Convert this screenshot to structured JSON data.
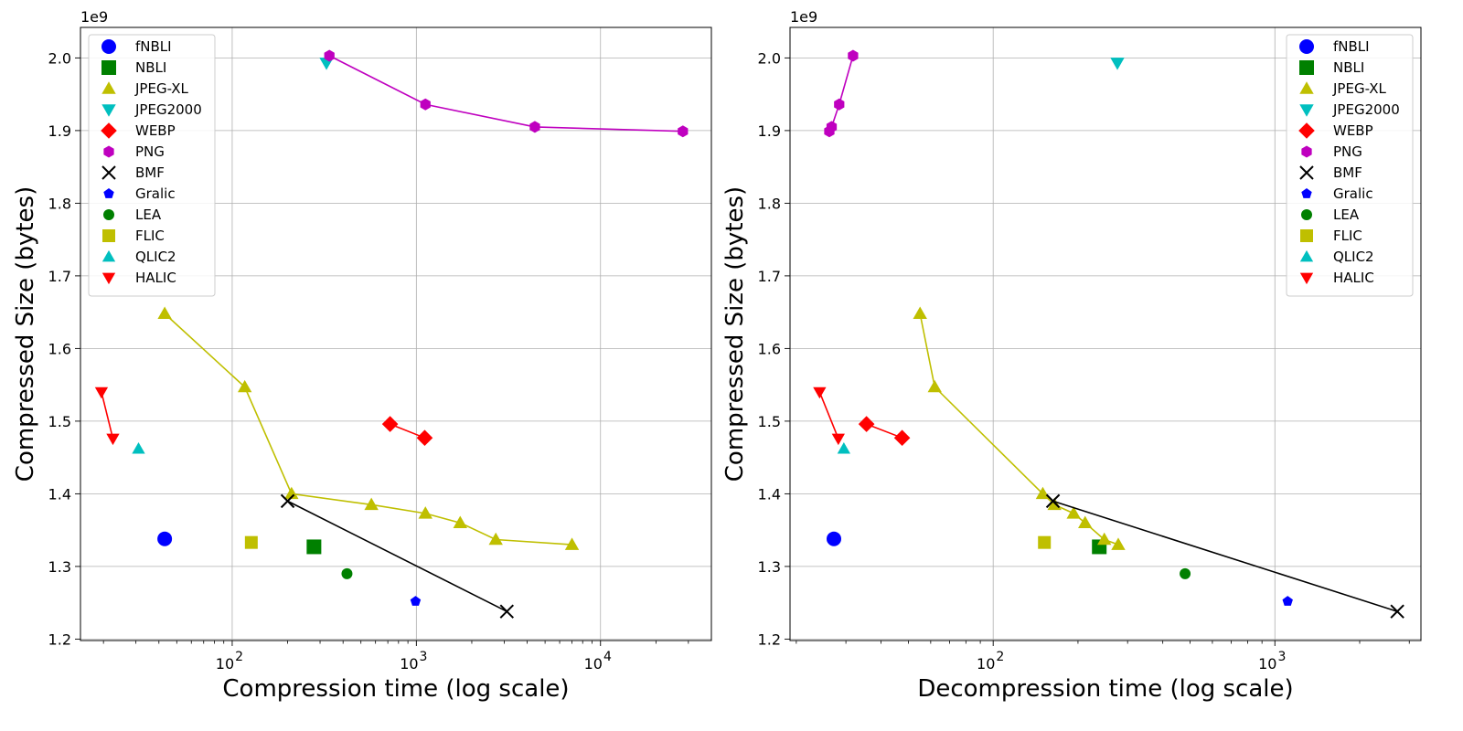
{
  "chart_data": [
    {
      "type": "scatter",
      "xscale": "log",
      "xlabel": "Compression time (log scale)",
      "ylabel": "Compressed Size (bytes)",
      "y_offset_text": "1e9",
      "xlim": [
        15,
        40000
      ],
      "ylim": [
        1.198,
        2.042
      ],
      "yticks": [
        1.2,
        1.3,
        1.4,
        1.5,
        1.6,
        1.7,
        1.8,
        1.9,
        2.0
      ],
      "ytick_labels": [
        "1.2",
        "1.3",
        "1.4",
        "1.5",
        "1.6",
        "1.7",
        "1.8",
        "1.9",
        "2.0"
      ],
      "xticks": [
        100,
        1000,
        10000
      ],
      "xtick_labels": [
        "10",
        "10",
        "10"
      ],
      "xtick_exponents": [
        "2",
        "3",
        "4"
      ],
      "grid": true,
      "legend_position": "top-left",
      "series": [
        {
          "name": "fNBLI",
          "marker": "circle",
          "color": "#0000ff",
          "size": 16,
          "line": false,
          "points": [
            [
              43,
              1.338
            ]
          ]
        },
        {
          "name": "NBLI",
          "marker": "square",
          "color": "#008000",
          "size": 16,
          "line": false,
          "points": [
            [
              278,
              1.327
            ]
          ]
        },
        {
          "name": "JPEG-XL",
          "marker": "triangle-up",
          "color": "#bfbf00",
          "size": 14,
          "line": true,
          "points": [
            [
              43,
              1.648
            ],
            [
              117,
              1.547
            ],
            [
              210,
              1.4
            ],
            [
              570,
              1.385
            ],
            [
              1120,
              1.373
            ],
            [
              1730,
              1.36
            ],
            [
              2700,
              1.337
            ],
            [
              7000,
              1.33
            ]
          ]
        },
        {
          "name": "JPEG2000",
          "marker": "triangle-down",
          "color": "#00bfbf",
          "size": 14,
          "line": false,
          "points": [
            [
              325,
              1.993
            ]
          ]
        },
        {
          "name": "WEBP",
          "marker": "diamond",
          "color": "#ff0000",
          "size": 16,
          "line": true,
          "points": [
            [
              720,
              1.496
            ],
            [
              1110,
              1.477
            ]
          ]
        },
        {
          "name": "PNG",
          "marker": "hexagon",
          "color": "#bf00bf",
          "size": 13,
          "line": true,
          "points": [
            [
              337,
              2.003
            ],
            [
              1120,
              1.936
            ],
            [
              4400,
              1.905
            ],
            [
              28000,
              1.899
            ]
          ]
        },
        {
          "name": "BMF",
          "marker": "x",
          "color": "#000000",
          "size": 14,
          "line": true,
          "points": [
            [
              200,
              1.39
            ],
            [
              3100,
              1.238
            ]
          ]
        },
        {
          "name": "Gralic",
          "marker": "pentagon",
          "color": "#0000ff",
          "size": 12,
          "line": false,
          "points": [
            [
              990,
              1.252
            ]
          ]
        },
        {
          "name": "LEA",
          "marker": "circle",
          "color": "#008000",
          "size": 12,
          "line": false,
          "points": [
            [
              420,
              1.29
            ]
          ]
        },
        {
          "name": "FLIC",
          "marker": "square",
          "color": "#bfbf00",
          "size": 14,
          "line": false,
          "points": [
            [
              127,
              1.333
            ]
          ]
        },
        {
          "name": "QLIC2",
          "marker": "triangle-up",
          "color": "#00bfbf",
          "size": 13,
          "line": false,
          "points": [
            [
              31,
              1.462
            ]
          ]
        },
        {
          "name": "HALIC",
          "marker": "triangle-down",
          "color": "#ff0000",
          "size": 13,
          "line": true,
          "points": [
            [
              19.5,
              1.54
            ],
            [
              22.5,
              1.476
            ]
          ]
        }
      ]
    },
    {
      "type": "scatter",
      "xscale": "log",
      "xlabel": "Decompression time (log scale)",
      "ylabel": "Compressed Size (bytes)",
      "y_offset_text": "1e9",
      "xlim": [
        19,
        3300
      ],
      "ylim": [
        1.198,
        2.042
      ],
      "yticks": [
        1.2,
        1.3,
        1.4,
        1.5,
        1.6,
        1.7,
        1.8,
        1.9,
        2.0
      ],
      "ytick_labels": [
        "1.2",
        "1.3",
        "1.4",
        "1.5",
        "1.6",
        "1.7",
        "1.8",
        "1.9",
        "2.0"
      ],
      "xticks": [
        100,
        1000
      ],
      "xtick_labels": [
        "10",
        "10"
      ],
      "xtick_exponents": [
        "2",
        "3"
      ],
      "grid": true,
      "legend_position": "top-right",
      "series": [
        {
          "name": "fNBLI",
          "marker": "circle",
          "color": "#0000ff",
          "size": 16,
          "line": false,
          "points": [
            [
              27.2,
              1.338
            ]
          ]
        },
        {
          "name": "NBLI",
          "marker": "square",
          "color": "#008000",
          "size": 16,
          "line": false,
          "points": [
            [
              238,
              1.327
            ]
          ]
        },
        {
          "name": "JPEG-XL",
          "marker": "triangle-up",
          "color": "#bfbf00",
          "size": 14,
          "line": true,
          "points": [
            [
              55,
              1.648
            ],
            [
              62,
              1.547
            ],
            [
              150,
              1.4
            ],
            [
              165,
              1.385
            ],
            [
              193,
              1.373
            ],
            [
              212,
              1.36
            ],
            [
              248,
              1.337
            ],
            [
              278,
              1.33
            ]
          ]
        },
        {
          "name": "JPEG2000",
          "marker": "triangle-down",
          "color": "#00bfbf",
          "size": 14,
          "line": false,
          "points": [
            [
              276,
              1.993
            ]
          ]
        },
        {
          "name": "WEBP",
          "marker": "diamond",
          "color": "#ff0000",
          "size": 16,
          "line": true,
          "points": [
            [
              35.5,
              1.496
            ],
            [
              47.5,
              1.477
            ]
          ]
        },
        {
          "name": "PNG",
          "marker": "hexagon",
          "color": "#bf00bf",
          "size": 13,
          "line": true,
          "points": [
            [
              31.8,
              2.003
            ],
            [
              28.4,
              1.936
            ],
            [
              26.7,
              1.905
            ],
            [
              26.2,
              1.899
            ]
          ]
        },
        {
          "name": "BMF",
          "marker": "x",
          "color": "#000000",
          "size": 14,
          "line": true,
          "points": [
            [
              163,
              1.39
            ],
            [
              2720,
              1.238
            ]
          ]
        },
        {
          "name": "Gralic",
          "marker": "pentagon",
          "color": "#0000ff",
          "size": 12,
          "line": false,
          "points": [
            [
              1110,
              1.252
            ]
          ]
        },
        {
          "name": "LEA",
          "marker": "circle",
          "color": "#008000",
          "size": 12,
          "line": false,
          "points": [
            [
              480,
              1.29
            ]
          ]
        },
        {
          "name": "FLIC",
          "marker": "square",
          "color": "#bfbf00",
          "size": 14,
          "line": false,
          "points": [
            [
              152,
              1.333
            ]
          ]
        },
        {
          "name": "QLIC2",
          "marker": "triangle-up",
          "color": "#00bfbf",
          "size": 13,
          "line": false,
          "points": [
            [
              29.5,
              1.462
            ]
          ]
        },
        {
          "name": "HALIC",
          "marker": "triangle-down",
          "color": "#ff0000",
          "size": 13,
          "line": true,
          "points": [
            [
              24.2,
              1.54
            ],
            [
              28.2,
              1.476
            ]
          ]
        }
      ]
    }
  ]
}
